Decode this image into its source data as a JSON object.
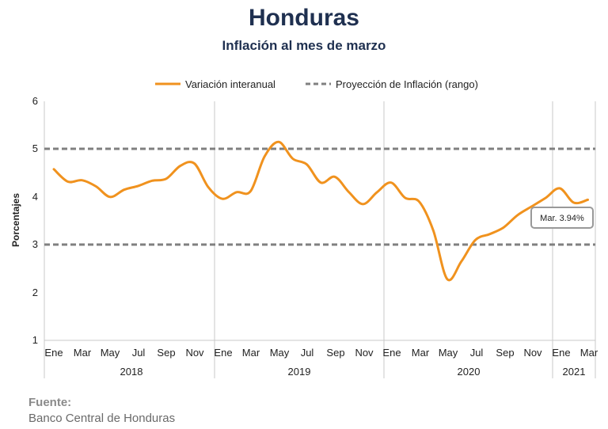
{
  "title": "Honduras",
  "subtitle": "Inflación al mes de marzo",
  "source": {
    "label": "Fuente:",
    "text": "Banco Central de Honduras"
  },
  "chart_data": {
    "type": "line",
    "ylabel": "Porcentajes",
    "ylim": [
      1,
      6
    ],
    "yticks": [
      1,
      2,
      3,
      4,
      5,
      6
    ],
    "grid": "vertical separators only",
    "legend_position": "top",
    "month_labels": [
      "Ene",
      "Mar",
      "May",
      "Jul",
      "Sep",
      "Nov",
      "Ene",
      "Mar",
      "May",
      "Jul",
      "Sep",
      "Nov",
      "Ene",
      "Mar",
      "May",
      "Jul",
      "Sep",
      "Nov",
      "Ene",
      "Mar"
    ],
    "year_labels": [
      "2018",
      "2019",
      "2020",
      "2021"
    ],
    "series": [
      {
        "name": "Variación interanual",
        "color": "#F0921E",
        "values": [
          4.58,
          4.32,
          4.35,
          4.22,
          4.0,
          4.15,
          4.23,
          4.34,
          4.38,
          4.65,
          4.7,
          4.2,
          3.96,
          4.1,
          4.12,
          4.85,
          5.15,
          4.8,
          4.68,
          4.3,
          4.42,
          4.1,
          3.85,
          4.1,
          4.3,
          3.98,
          3.9,
          3.3,
          2.28,
          2.65,
          3.1,
          3.22,
          3.36,
          3.62,
          3.8,
          3.98,
          4.18,
          3.88,
          3.94
        ]
      },
      {
        "name": "Proyección de Inflación (rango)",
        "color": "#808080",
        "style": "dashed",
        "upper": 5,
        "lower": 3
      }
    ],
    "annotation": "Mar. 3.94%"
  }
}
